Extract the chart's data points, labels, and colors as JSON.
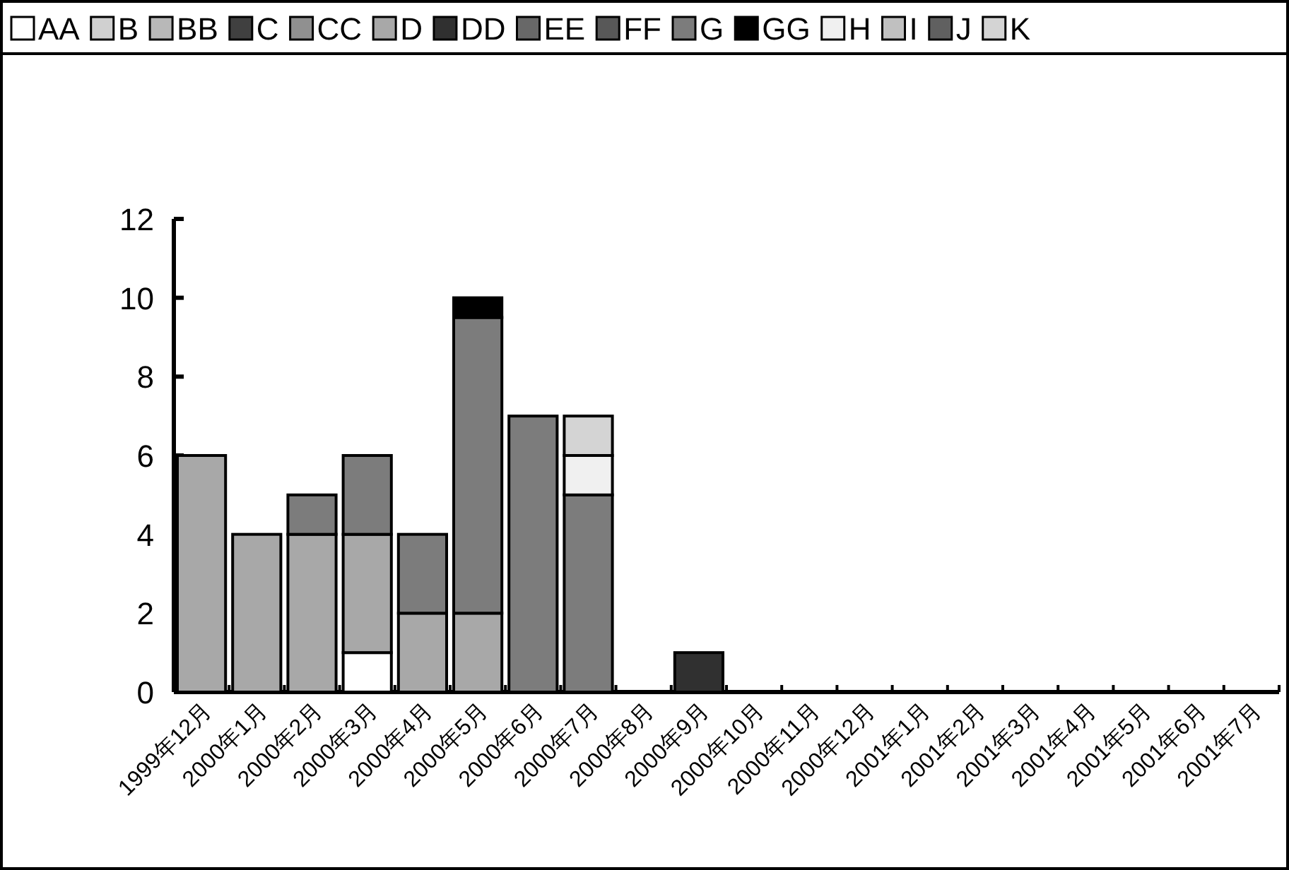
{
  "chart_data": {
    "type": "bar",
    "stacked": true,
    "legend": "top",
    "categories": [
      "1999年12月",
      "2000年1月",
      "2000年2月",
      "2000年3月",
      "2000年4月",
      "2000年5月",
      "2000年6月",
      "2000年7月",
      "2000年8月",
      "2000年9月",
      "2000年10月",
      "2000年11月",
      "2000年12月",
      "2001年1月",
      "2001年2月",
      "2001年3月",
      "2001年4月",
      "2001年5月",
      "2001年6月",
      "2001年7月"
    ],
    "ylim": [
      0,
      12
    ],
    "yticks": [
      0,
      2,
      4,
      6,
      8,
      10,
      12
    ],
    "series": [
      {
        "name": "AA",
        "color": "#ffffff",
        "values": [
          0,
          0,
          0,
          1,
          0,
          0,
          0,
          0,
          0,
          0,
          0,
          0,
          0,
          0,
          0,
          0,
          0,
          0,
          0,
          0
        ]
      },
      {
        "name": "B",
        "color": "#d0d0d0",
        "values": [
          0,
          0,
          0,
          0,
          0,
          0,
          0,
          0,
          0,
          0,
          0,
          0,
          0,
          0,
          0,
          0,
          0,
          0,
          0,
          0
        ]
      },
      {
        "name": "BB",
        "color": "#b8b8b8",
        "values": [
          0,
          0,
          0,
          0,
          0,
          0,
          0,
          0,
          0,
          0,
          0,
          0,
          0,
          0,
          0,
          0,
          0,
          0,
          0,
          0
        ]
      },
      {
        "name": "C",
        "color": "#404040",
        "values": [
          0,
          0,
          0,
          0,
          0,
          0,
          0,
          0,
          0,
          0,
          0,
          0,
          0,
          0,
          0,
          0,
          0,
          0,
          0,
          0
        ]
      },
      {
        "name": "CC",
        "color": "#909090",
        "values": [
          0,
          0,
          0,
          0,
          0,
          0,
          0,
          0,
          0,
          0,
          0,
          0,
          0,
          0,
          0,
          0,
          0,
          0,
          0,
          0
        ]
      },
      {
        "name": "D",
        "color": "#a8a8a8",
        "values": [
          6,
          4,
          4,
          3,
          2,
          2,
          0,
          0,
          0,
          0,
          0,
          0,
          0,
          0,
          0,
          0,
          0,
          0,
          0,
          0
        ]
      },
      {
        "name": "DD",
        "color": "#303030",
        "values": [
          0,
          0,
          0,
          0,
          0,
          0,
          0,
          0,
          0,
          1,
          0,
          0,
          0,
          0,
          0,
          0,
          0,
          0,
          0,
          0
        ]
      },
      {
        "name": "EE",
        "color": "#686868",
        "values": [
          0,
          0,
          0,
          0,
          0,
          0,
          0,
          0,
          0,
          0,
          0,
          0,
          0,
          0,
          0,
          0,
          0,
          0,
          0,
          0
        ]
      },
      {
        "name": "FF",
        "color": "#585858",
        "values": [
          0,
          0,
          0,
          0,
          0,
          0,
          0,
          0,
          0,
          0,
          0,
          0,
          0,
          0,
          0,
          0,
          0,
          0,
          0,
          0
        ]
      },
      {
        "name": "G",
        "color": "#7c7c7c",
        "values": [
          0,
          0,
          1,
          2,
          2,
          7.5,
          7,
          5,
          0,
          0,
          0,
          0,
          0,
          0,
          0,
          0,
          0,
          0,
          0,
          0
        ]
      },
      {
        "name": "GG",
        "color": "#000000",
        "values": [
          0,
          0,
          0,
          0,
          0,
          0.5,
          0,
          0,
          0,
          0,
          0,
          0,
          0,
          0,
          0,
          0,
          0,
          0,
          0,
          0
        ]
      },
      {
        "name": "H",
        "color": "#f0f0f0",
        "values": [
          0,
          0,
          0,
          0,
          0,
          0,
          0,
          1,
          0,
          0,
          0,
          0,
          0,
          0,
          0,
          0,
          0,
          0,
          0,
          0
        ]
      },
      {
        "name": "I",
        "color": "#c0c0c0",
        "values": [
          0,
          0,
          0,
          0,
          0,
          0,
          0,
          0,
          0,
          0,
          0,
          0,
          0,
          0,
          0,
          0,
          0,
          0,
          0,
          0
        ]
      },
      {
        "name": "J",
        "color": "#606060",
        "values": [
          0,
          0,
          0,
          0,
          0,
          0,
          0,
          0,
          0,
          0,
          0,
          0,
          0,
          0,
          0,
          0,
          0,
          0,
          0,
          0
        ]
      },
      {
        "name": "K",
        "color": "#d4d4d4",
        "values": [
          0,
          0,
          0,
          0,
          0,
          0,
          0,
          1,
          0,
          0,
          0,
          0,
          0,
          0,
          0,
          0,
          0,
          0,
          0,
          0
        ]
      }
    ]
  }
}
